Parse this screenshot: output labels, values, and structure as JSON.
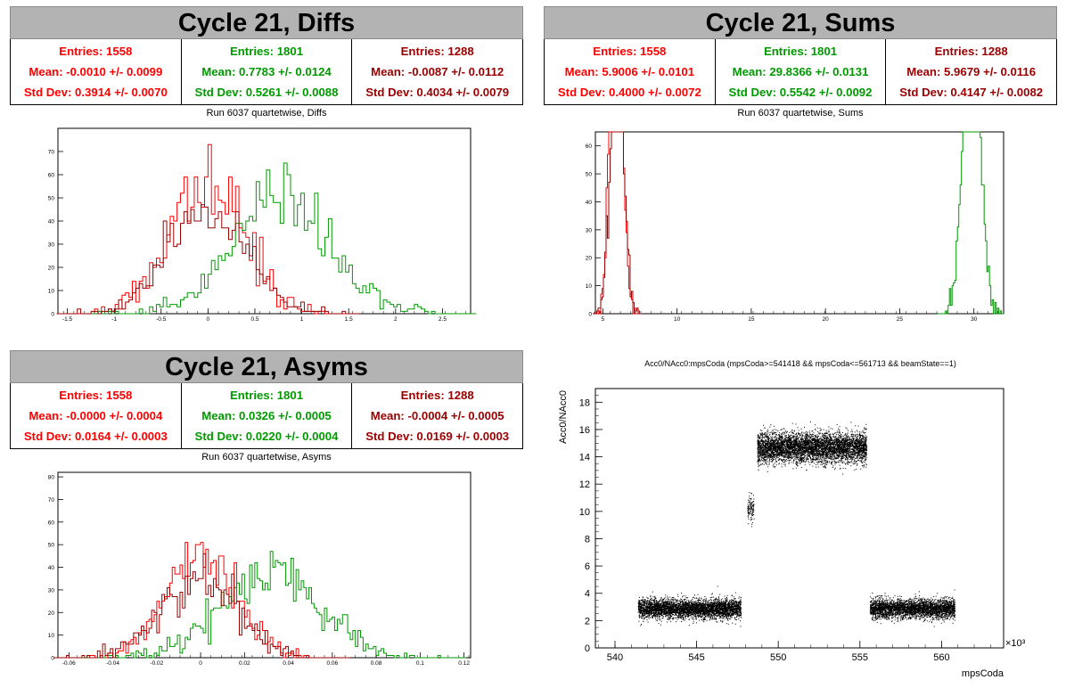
{
  "colors": {
    "red": "#ff0000",
    "green": "#00a000",
    "darkred": "#a00000",
    "black": "#000000",
    "titlebg": "#b3b3b3"
  },
  "diffs": {
    "title": "Cycle 21, Diffs",
    "subtitle": "Run 6037 quartetwise, Diffs",
    "stats": [
      {
        "entries": "Entries: 1558",
        "mean": "Mean: -0.0010 +/- 0.0099",
        "std": "Std Dev: 0.3914 +/- 0.0070",
        "color": "#ff0000"
      },
      {
        "entries": "Entries: 1801",
        "mean": "Mean: 0.7783 +/- 0.0124",
        "std": "Std Dev: 0.5261 +/- 0.0088",
        "color": "#009900"
      },
      {
        "entries": "Entries: 1288",
        "mean": "Mean: -0.0087 +/- 0.0112",
        "std": "Std Dev: 0.4034 +/- 0.0079",
        "color": "#990000"
      }
    ]
  },
  "sums": {
    "title": "Cycle 21, Sums",
    "subtitle": "Run 6037 quartetwise, Sums",
    "stats": [
      {
        "entries": "Entries: 1558",
        "mean": "Mean: 5.9006 +/- 0.0101",
        "std": "Std Dev: 0.4000 +/- 0.0072",
        "color": "#ff0000"
      },
      {
        "entries": "Entries: 1801",
        "mean": "Mean: 29.8366 +/- 0.0131",
        "std": "Std Dev: 0.5542 +/- 0.0092",
        "color": "#009900"
      },
      {
        "entries": "Entries: 1288",
        "mean": "Mean: 5.9679 +/- 0.0116",
        "std": "Std Dev: 0.4147 +/- 0.0082",
        "color": "#990000"
      }
    ]
  },
  "asyms": {
    "title": "Cycle 21, Asyms",
    "subtitle": "Run 6037 quartetwise, Asyms",
    "stats": [
      {
        "entries": "Entries: 1558",
        "mean": "Mean: -0.0000 +/- 0.0004",
        "std": "Std Dev: 0.0164 +/- 0.0003",
        "color": "#ff0000"
      },
      {
        "entries": "Entries: 1801",
        "mean": "Mean: 0.0326 +/- 0.0005",
        "std": "Std Dev: 0.0220 +/- 0.0004",
        "color": "#009900"
      },
      {
        "entries": "Entries: 1288",
        "mean": "Mean: -0.0004 +/- 0.0005",
        "std": "Std Dev: 0.0169 +/- 0.0003",
        "color": "#990000"
      }
    ]
  },
  "scatter_title": "Acc0/NAcc0:mpsCoda (mpsCoda>=541418 && mpsCoda<=561713 && beamState==1)",
  "chart_data": [
    {
      "type": "bar",
      "title": "Run 6037 quartetwise, Diffs",
      "xlim": [
        -1.6,
        2.8
      ],
      "ylim": [
        0,
        80
      ],
      "xticks": [
        -1.5,
        -1,
        -0.5,
        0,
        0.5,
        1,
        1.5,
        2,
        2.5
      ],
      "yticks": [
        0,
        10,
        20,
        30,
        40,
        50,
        60,
        70
      ],
      "series": [
        {
          "color": "#ff0000",
          "mean": -0.001,
          "std": 0.3914,
          "entries": 1558
        },
        {
          "color": "#009900",
          "mean": 0.7783,
          "std": 0.5261,
          "entries": 1801
        },
        {
          "color": "#990000",
          "mean": -0.0087,
          "std": 0.4034,
          "entries": 1288
        }
      ]
    },
    {
      "type": "bar",
      "title": "Run 6037 quartetwise, Sums",
      "xlim": [
        4.5,
        32
      ],
      "ylim": [
        0,
        65
      ],
      "xticks": [
        5,
        10,
        15,
        20,
        25,
        30
      ],
      "yticks": [
        0,
        10,
        20,
        30,
        40,
        50,
        60
      ],
      "series": [
        {
          "color": "#ff0000",
          "mean": 5.9006,
          "std": 0.4,
          "entries": 1558
        },
        {
          "color": "#009900",
          "mean": 29.8366,
          "std": 0.5542,
          "entries": 1801
        },
        {
          "color": "#990000",
          "mean": 5.9679,
          "std": 0.4147,
          "entries": 1288
        }
      ]
    },
    {
      "type": "bar",
      "title": "Run 6037 quartetwise, Asyms",
      "xlim": [
        -0.065,
        0.123
      ],
      "ylim": [
        0,
        82
      ],
      "xticks": [
        -0.06,
        -0.04,
        -0.02,
        0,
        0.02,
        0.04,
        0.06,
        0.08,
        0.1,
        0.12
      ],
      "yticks": [
        0,
        10,
        20,
        30,
        40,
        50,
        60,
        70,
        80
      ],
      "series": [
        {
          "color": "#ff0000",
          "mean": 0.0,
          "std": 0.0164,
          "entries": 1558
        },
        {
          "color": "#009900",
          "mean": 0.0326,
          "std": 0.022,
          "entries": 1801
        },
        {
          "color": "#990000",
          "mean": -0.0004,
          "std": 0.0169,
          "entries": 1288
        }
      ]
    },
    {
      "type": "scatter",
      "title": "Acc0/NAcc0:mpsCoda (mpsCoda>=541418 && mpsCoda<=561713 && beamState==1)",
      "xlabel": "mpsCoda",
      "ylabel": "Acc0/NAcc0",
      "xscale_label": "×10³",
      "xlim": [
        538.8,
        563.8
      ],
      "ylim": [
        0,
        19
      ],
      "xticks": [
        540,
        545,
        550,
        555,
        560
      ],
      "yticks": [
        0,
        2,
        4,
        6,
        8,
        10,
        12,
        14,
        16,
        18
      ],
      "clusters": [
        {
          "x": [
            541.4,
            547.7
          ],
          "y_center": 2.9,
          "y_spread": 0.35,
          "count": 4200
        },
        {
          "x": [
            548.1,
            548.5
          ],
          "y_center": 10.2,
          "y_spread": 0.45,
          "count": 120
        },
        {
          "x": [
            548.7,
            555.4
          ],
          "y_center": 14.7,
          "y_spread": 0.55,
          "count": 5200
        },
        {
          "x": [
            555.6,
            560.8
          ],
          "y_center": 2.9,
          "y_spread": 0.35,
          "count": 3400
        }
      ]
    }
  ]
}
